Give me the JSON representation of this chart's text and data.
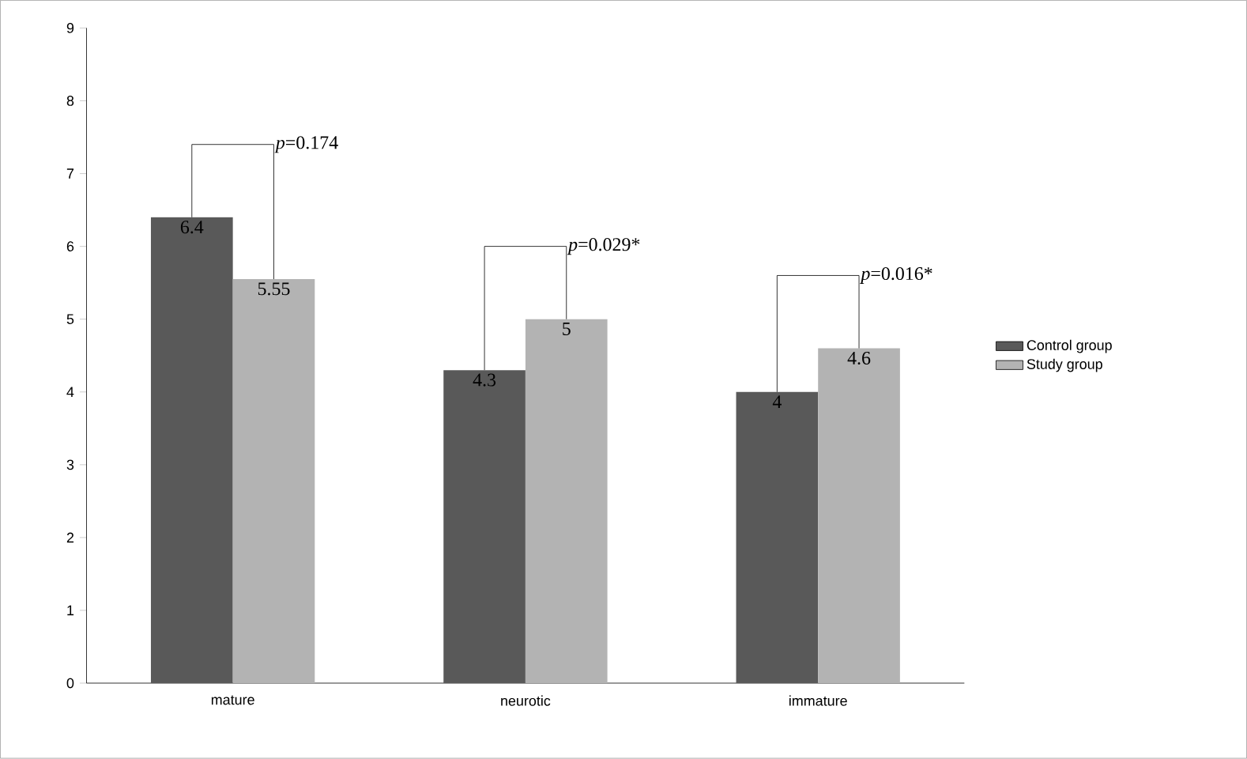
{
  "chart_data": {
    "type": "bar",
    "categories": [
      "mature",
      "neurotic",
      "immature"
    ],
    "series": [
      {
        "name": "Control group",
        "color": "#595959",
        "values": [
          6.4,
          4.3,
          4
        ]
      },
      {
        "name": "Study group",
        "color": "#b3b3b3",
        "values": [
          5.55,
          5,
          4.6
        ]
      }
    ],
    "ylim": [
      0,
      9
    ],
    "yticks": [
      0,
      1,
      2,
      3,
      4,
      5,
      6,
      7,
      8,
      9
    ],
    "data_labels": true,
    "legend": "right",
    "grid": false,
    "annotations": [
      "*p*=0.174",
      "*p*=0.029*",
      "*p*=0.016*"
    ]
  }
}
